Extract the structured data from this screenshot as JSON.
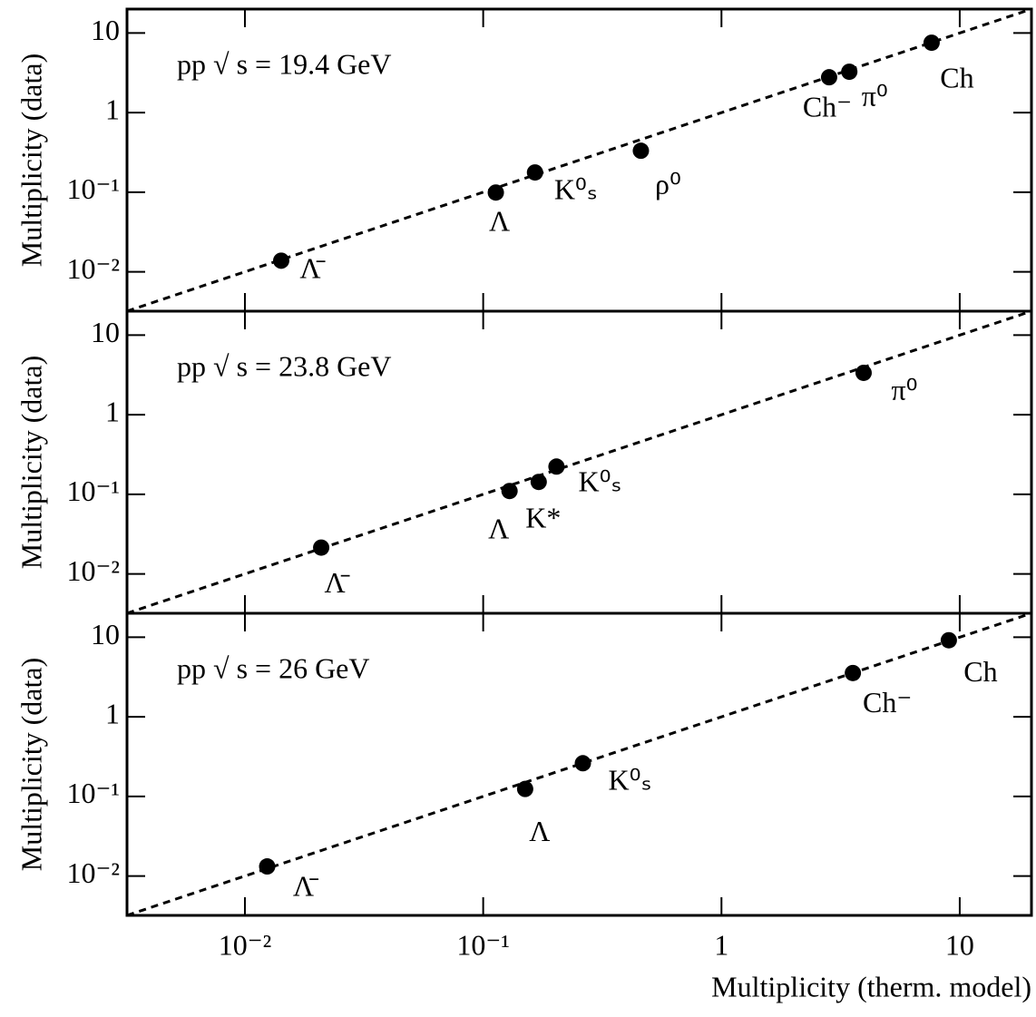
{
  "chart_data": [
    {
      "type": "scatter",
      "annotation": "pp √ s = 19.4 GeV",
      "ylabel": "Multiplicity (data)",
      "x": [
        0.0142,
        0.113,
        0.165,
        0.459,
        2.83,
        3.44,
        7.62
      ],
      "values": [
        0.0138,
        0.099,
        0.177,
        0.332,
        2.78,
        3.26,
        7.55
      ],
      "point_labels": [
        "Λ̄",
        "Λ",
        "K⁰ₛ",
        "ρ⁰",
        "Ch⁻",
        "π⁰",
        "Ch"
      ],
      "color": "#000000",
      "log_x": true,
      "log_y": true,
      "xlim": [
        0.0032,
        20
      ],
      "xticks": [
        {
          "value": 0.01,
          "label": "10⁻²"
        },
        {
          "value": 0.1,
          "label": "10⁻¹"
        },
        1,
        10
      ],
      "ylim": [
        0.0032,
        20
      ],
      "yticks": [
        {
          "value": 0.01,
          "label": "10⁻²"
        },
        {
          "value": 0.1,
          "label": "10⁻¹"
        },
        1,
        10
      ]
    },
    {
      "type": "scatter",
      "annotation": "pp √ s = 23.8 GeV",
      "ylabel": "Multiplicity (data)",
      "x": [
        0.0209,
        0.129,
        0.171,
        0.203,
        3.95
      ],
      "values": [
        0.0214,
        0.11,
        0.143,
        0.223,
        3.36
      ],
      "point_labels": [
        "Λ̄",
        "Λ",
        "K*",
        "K⁰ₛ",
        "π⁰"
      ],
      "color": "#000000",
      "log_x": true,
      "log_y": true,
      "xlim": [
        0.0032,
        20
      ],
      "xticks": [
        {
          "value": 0.01,
          "label": "10⁻²"
        },
        {
          "value": 0.1,
          "label": "10⁻¹"
        },
        1,
        10
      ],
      "ylim": [
        0.0032,
        20
      ],
      "yticks": [
        {
          "value": 0.01,
          "label": "10⁻²"
        },
        {
          "value": 0.1,
          "label": "10⁻¹"
        },
        1,
        10
      ]
    },
    {
      "type": "scatter",
      "annotation": "pp √ s = 26 GeV",
      "ylabel": "Multiplicity (data)",
      "xlabel": "Multiplicity (therm. model)",
      "x": [
        0.0124,
        0.15,
        0.262,
        3.56,
        9.0
      ],
      "values": [
        0.0132,
        0.124,
        0.261,
        3.55,
        9.17
      ],
      "point_labels": [
        "Λ̄",
        "Λ",
        "K⁰ₛ",
        "Ch⁻",
        "Ch"
      ],
      "color": "#000000",
      "log_x": true,
      "log_y": true,
      "xlim": [
        0.0032,
        20
      ],
      "xticks": [
        {
          "value": 0.01,
          "label": "10⁻²"
        },
        {
          "value": 0.1,
          "label": "10⁻¹"
        },
        1,
        10
      ],
      "ylim": [
        0.0032,
        20
      ],
      "yticks": [
        {
          "value": 0.01,
          "label": "10⁻²"
        },
        {
          "value": 0.1,
          "label": "10⁻¹"
        },
        1,
        10
      ]
    }
  ]
}
